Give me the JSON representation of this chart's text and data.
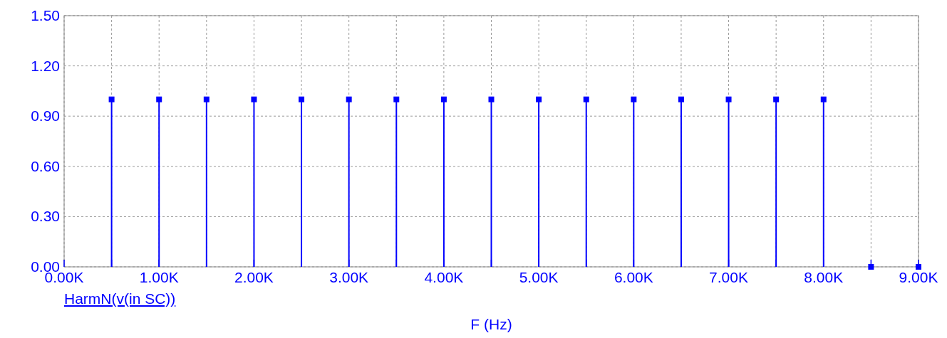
{
  "chart_data": {
    "type": "lollipop",
    "xlabel": "F (Hz)",
    "x": [
      500,
      1000,
      1500,
      2000,
      2500,
      3000,
      3500,
      4000,
      4500,
      5000,
      5500,
      6000,
      6500,
      7000,
      7500,
      8000,
      8500,
      9000
    ],
    "series": [
      {
        "name": "HarmN(v(in SC))",
        "color": "#0000ff",
        "values": [
          1,
          1,
          1,
          1,
          1,
          1,
          1,
          1,
          1,
          1,
          1,
          1,
          1,
          1,
          1,
          1,
          0,
          0
        ]
      }
    ],
    "xlim": [
      0,
      9000
    ],
    "xticks": [
      {
        "value": 0,
        "label": "0.00K"
      },
      {
        "value": 500,
        "label": null
      },
      {
        "value": 1000,
        "label": "1.00K"
      },
      {
        "value": 1500,
        "label": null
      },
      {
        "value": 2000,
        "label": "2.00K"
      },
      {
        "value": 2500,
        "label": null
      },
      {
        "value": 3000,
        "label": "3.00K"
      },
      {
        "value": 3500,
        "label": null
      },
      {
        "value": 4000,
        "label": "4.00K"
      },
      {
        "value": 4500,
        "label": null
      },
      {
        "value": 5000,
        "label": "5.00K"
      },
      {
        "value": 5500,
        "label": null
      },
      {
        "value": 6000,
        "label": "6.00K"
      },
      {
        "value": 6500,
        "label": null
      },
      {
        "value": 7000,
        "label": "7.00K"
      },
      {
        "value": 7500,
        "label": null
      },
      {
        "value": 8000,
        "label": "8.00K"
      },
      {
        "value": 8500,
        "label": null
      },
      {
        "value": 9000,
        "label": "9.00K"
      }
    ],
    "ylim": [
      0,
      1.5
    ],
    "yticks": [
      {
        "value": 0,
        "label": "0.00"
      },
      {
        "value": 0.3,
        "label": "0.30"
      },
      {
        "value": 0.6,
        "label": "0.60"
      },
      {
        "value": 0.9,
        "label": "0.90"
      },
      {
        "value": 1.2,
        "label": "1.20"
      },
      {
        "value": 1.5,
        "label": "1.50"
      }
    ],
    "grid": true,
    "marker": "square",
    "legend": "bottom left"
  }
}
